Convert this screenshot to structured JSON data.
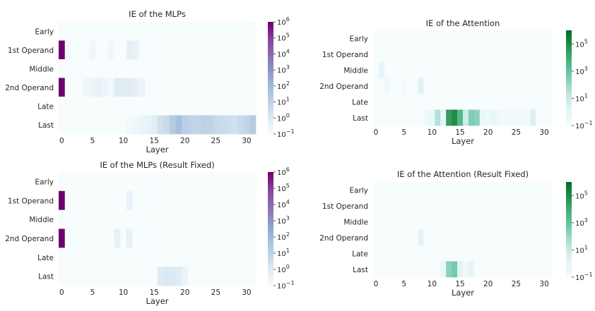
{
  "colors": {
    "mlp_scale": [
      "#f7fcfd",
      "#e0ecf4",
      "#bfd3e6",
      "#9ebcda",
      "#8c96c6",
      "#8c6bb1",
      "#88419d",
      "#6e016b"
    ],
    "attn_scale": [
      "#f7fcfd",
      "#e5f5f9",
      "#ccece6",
      "#99d8c9",
      "#66c2a4",
      "#41ae76",
      "#238b45",
      "#006d2c"
    ],
    "text": "#262626"
  },
  "chart_data": [
    {
      "type": "heatmap",
      "title": "IE of the MLPs",
      "xlabel": "Layer",
      "ylabel": "",
      "rows": [
        "Early",
        "1st Operand",
        "Middle",
        "2nd Operand",
        "Late",
        "Last"
      ],
      "x_ticks": [
        "0",
        "5",
        "10",
        "15",
        "20",
        "25",
        "30"
      ],
      "x": [
        0,
        1,
        2,
        3,
        4,
        5,
        6,
        7,
        8,
        9,
        10,
        11,
        12,
        13,
        14,
        15,
        16,
        17,
        18,
        19,
        20,
        21,
        22,
        23,
        24,
        25,
        26,
        27,
        28,
        29,
        30,
        31
      ],
      "color_scale": "log",
      "cbar_range": [
        0.1,
        1000000
      ],
      "cbar_ticks": [
        "10^6",
        "10^5",
        "10^4",
        "10^3",
        "10^2",
        "10^1",
        "10^0",
        "10^-1"
      ],
      "values": [
        [
          0.1,
          0.1,
          0.1,
          0.1,
          0.1,
          0.1,
          0.1,
          0.1,
          0.1,
          0.1,
          0.1,
          0.1,
          0.1,
          0.1,
          0.1,
          0.1,
          0.1,
          0.1,
          0.1,
          0.1,
          0.1,
          0.1,
          0.1,
          0.1,
          0.1,
          0.1,
          0.1,
          0.1,
          0.1,
          0.1,
          0.1,
          0.1
        ],
        [
          1000000,
          0.15,
          0.1,
          0.1,
          0.1,
          0.25,
          0.1,
          0.1,
          0.2,
          0.1,
          0.1,
          0.6,
          0.4,
          0.1,
          0.1,
          0.1,
          0.1,
          0.1,
          0.1,
          0.1,
          0.1,
          0.1,
          0.1,
          0.1,
          0.1,
          0.1,
          0.1,
          0.1,
          0.1,
          0.1,
          0.1,
          0.1
        ],
        [
          0.1,
          0.1,
          0.1,
          0.1,
          0.1,
          0.1,
          0.1,
          0.1,
          0.1,
          0.1,
          0.1,
          0.1,
          0.1,
          0.1,
          0.1,
          0.1,
          0.1,
          0.1,
          0.1,
          0.1,
          0.1,
          0.1,
          0.1,
          0.1,
          0.1,
          0.1,
          0.1,
          0.1,
          0.1,
          0.1,
          0.1,
          0.1
        ],
        [
          1000000,
          0.1,
          0.1,
          0.1,
          0.2,
          0.3,
          0.5,
          0.3,
          0.15,
          1.0,
          0.8,
          0.9,
          0.6,
          0.3,
          0.1,
          0.1,
          0.1,
          0.1,
          0.1,
          0.1,
          0.1,
          0.1,
          0.1,
          0.1,
          0.1,
          0.1,
          0.1,
          0.1,
          0.1,
          0.1,
          0.1,
          0.1
        ],
        [
          0.1,
          0.1,
          0.1,
          0.1,
          0.1,
          0.1,
          0.1,
          0.1,
          0.1,
          0.1,
          0.1,
          0.1,
          0.1,
          0.1,
          0.1,
          0.1,
          0.1,
          0.1,
          0.1,
          0.1,
          0.1,
          0.1,
          0.1,
          0.1,
          0.1,
          0.1,
          0.1,
          0.1,
          0.1,
          0.1,
          0.1,
          0.1
        ],
        [
          0.1,
          0.1,
          0.1,
          0.1,
          0.1,
          0.1,
          0.1,
          0.1,
          0.1,
          0.1,
          0.1,
          0.15,
          0.2,
          0.3,
          0.4,
          0.8,
          3,
          5,
          20,
          60,
          15,
          10,
          8,
          12,
          10,
          6,
          5,
          4,
          3,
          5,
          8,
          20
        ]
      ]
    },
    {
      "type": "heatmap",
      "title": "IE of the Attention",
      "xlabel": "Layer",
      "ylabel": "",
      "rows": [
        "Early",
        "1st Operand",
        "Middle",
        "2nd Operand",
        "Late",
        "Last"
      ],
      "x_ticks": [
        "0",
        "5",
        "10",
        "15",
        "20",
        "25",
        "30"
      ],
      "x": [
        0,
        1,
        2,
        3,
        4,
        5,
        6,
        7,
        8,
        9,
        10,
        11,
        12,
        13,
        14,
        15,
        16,
        17,
        18,
        19,
        20,
        21,
        22,
        23,
        24,
        25,
        26,
        27,
        28,
        29,
        30,
        31
      ],
      "color_scale": "log",
      "cbar_range": [
        0.1,
        1000000
      ],
      "cbar_ticks": [
        "10^5",
        "10^3",
        "10^1",
        "10^-1"
      ],
      "values": [
        [
          0.1,
          0.1,
          0.1,
          0.1,
          0.1,
          0.1,
          0.1,
          0.1,
          0.1,
          0.1,
          0.1,
          0.1,
          0.1,
          0.1,
          0.1,
          0.1,
          0.1,
          0.1,
          0.1,
          0.1,
          0.1,
          0.1,
          0.1,
          0.1,
          0.1,
          0.1,
          0.1,
          0.1,
          0.1,
          0.1,
          0.1,
          0.1
        ],
        [
          0.1,
          0.1,
          0.1,
          0.1,
          0.1,
          0.1,
          0.1,
          0.1,
          0.1,
          0.1,
          0.1,
          0.1,
          0.1,
          0.1,
          0.1,
          0.1,
          0.1,
          0.1,
          0.1,
          0.1,
          0.1,
          0.1,
          0.1,
          0.1,
          0.1,
          0.1,
          0.1,
          0.1,
          0.1,
          0.1,
          0.1,
          0.1
        ],
        [
          0.1,
          1.0,
          0.1,
          0.1,
          0.1,
          0.1,
          0.1,
          0.1,
          0.1,
          0.1,
          0.1,
          0.1,
          0.1,
          0.1,
          0.1,
          0.1,
          0.1,
          0.1,
          0.1,
          0.1,
          0.1,
          0.1,
          0.1,
          0.1,
          0.1,
          0.1,
          0.1,
          0.1,
          0.1,
          0.1,
          0.1,
          0.1
        ],
        [
          0.1,
          0.1,
          0.3,
          0.1,
          0.1,
          0.2,
          0.1,
          0.1,
          2.0,
          0.1,
          0.1,
          0.1,
          0.1,
          0.1,
          0.1,
          0.1,
          0.1,
          0.1,
          0.1,
          0.1,
          0.1,
          0.1,
          0.1,
          0.1,
          0.1,
          0.1,
          0.1,
          0.1,
          0.1,
          0.1,
          0.1,
          0.1
        ],
        [
          0.1,
          0.1,
          0.1,
          0.1,
          0.1,
          0.1,
          0.1,
          0.1,
          0.1,
          0.1,
          0.1,
          0.1,
          0.1,
          0.1,
          0.1,
          0.1,
          0.1,
          0.1,
          0.1,
          0.1,
          0.1,
          0.1,
          0.1,
          0.1,
          0.1,
          0.1,
          0.1,
          0.1,
          0.1,
          0.1,
          0.1,
          0.1
        ],
        [
          0.1,
          0.1,
          0.1,
          0.1,
          0.1,
          0.1,
          0.1,
          0.1,
          0.1,
          0.3,
          0.5,
          30,
          0.8,
          30000,
          100000,
          3000,
          10,
          300,
          200,
          0.5,
          0.3,
          0.8,
          0.3,
          0.2,
          0.2,
          0.2,
          0.2,
          0.2,
          3,
          0.1,
          0.1,
          0.1
        ]
      ]
    },
    {
      "type": "heatmap",
      "title": "IE of the MLPs (Result Fixed)",
      "xlabel": "Layer",
      "ylabel": "",
      "rows": [
        "Early",
        "1st Operand",
        "Middle",
        "2nd Operand",
        "Late",
        "Last"
      ],
      "x_ticks": [
        "0",
        "5",
        "10",
        "15",
        "20",
        "25",
        "30"
      ],
      "x": [
        0,
        1,
        2,
        3,
        4,
        5,
        6,
        7,
        8,
        9,
        10,
        11,
        12,
        13,
        14,
        15,
        16,
        17,
        18,
        19,
        20,
        21,
        22,
        23,
        24,
        25,
        26,
        27,
        28,
        29,
        30,
        31
      ],
      "color_scale": "log",
      "cbar_range": [
        0.1,
        1000000
      ],
      "cbar_ticks": [
        "10^6",
        "10^5",
        "10^4",
        "10^3",
        "10^2",
        "10^1",
        "10^0",
        "10^-1"
      ],
      "values": [
        [
          0.1,
          0.1,
          0.1,
          0.1,
          0.1,
          0.1,
          0.1,
          0.1,
          0.1,
          0.1,
          0.1,
          0.1,
          0.1,
          0.1,
          0.1,
          0.1,
          0.1,
          0.1,
          0.1,
          0.1,
          0.1,
          0.1,
          0.1,
          0.1,
          0.1,
          0.1,
          0.1,
          0.1,
          0.1,
          0.1,
          0.1,
          0.1
        ],
        [
          1000000,
          0.1,
          0.1,
          0.1,
          0.1,
          0.1,
          0.1,
          0.1,
          0.1,
          0.1,
          0.1,
          0.4,
          0.1,
          0.1,
          0.1,
          0.1,
          0.1,
          0.1,
          0.1,
          0.1,
          0.1,
          0.1,
          0.1,
          0.1,
          0.1,
          0.1,
          0.1,
          0.1,
          0.1,
          0.1,
          0.1,
          0.1
        ],
        [
          0.1,
          0.1,
          0.1,
          0.1,
          0.1,
          0.1,
          0.1,
          0.1,
          0.1,
          0.1,
          0.1,
          0.1,
          0.1,
          0.1,
          0.1,
          0.1,
          0.1,
          0.1,
          0.1,
          0.1,
          0.1,
          0.1,
          0.1,
          0.1,
          0.1,
          0.1,
          0.1,
          0.1,
          0.1,
          0.1,
          0.1,
          0.1
        ],
        [
          1000000,
          0.1,
          0.1,
          0.1,
          0.1,
          0.1,
          0.1,
          0.1,
          0.1,
          0.5,
          0.1,
          0.5,
          0.1,
          0.1,
          0.1,
          0.1,
          0.1,
          0.1,
          0.1,
          0.1,
          0.1,
          0.1,
          0.1,
          0.1,
          0.1,
          0.1,
          0.1,
          0.1,
          0.1,
          0.1,
          0.1,
          0.1
        ],
        [
          0.1,
          0.1,
          0.1,
          0.1,
          0.1,
          0.1,
          0.1,
          0.1,
          0.1,
          0.1,
          0.1,
          0.1,
          0.1,
          0.1,
          0.1,
          0.1,
          0.1,
          0.1,
          0.1,
          0.1,
          0.1,
          0.1,
          0.1,
          0.1,
          0.1,
          0.1,
          0.1,
          0.1,
          0.1,
          0.1,
          0.1,
          0.1
        ],
        [
          0.1,
          0.1,
          0.1,
          0.1,
          0.1,
          0.1,
          0.1,
          0.1,
          0.1,
          0.1,
          0.1,
          0.1,
          0.1,
          0.1,
          0.1,
          0.1,
          1.0,
          1.5,
          1.2,
          1.0,
          0.3,
          0.1,
          0.1,
          0.1,
          0.1,
          0.1,
          0.1,
          0.1,
          0.1,
          0.1,
          0.1,
          0.1
        ]
      ]
    },
    {
      "type": "heatmap",
      "title": "IE of the Attention (Result Fixed)",
      "xlabel": "Layer",
      "ylabel": "",
      "rows": [
        "Early",
        "1st Operand",
        "Middle",
        "2nd Operand",
        "Late",
        "Last"
      ],
      "x_ticks": [
        "0",
        "5",
        "10",
        "15",
        "20",
        "25",
        "30"
      ],
      "x": [
        0,
        1,
        2,
        3,
        4,
        5,
        6,
        7,
        8,
        9,
        10,
        11,
        12,
        13,
        14,
        15,
        16,
        17,
        18,
        19,
        20,
        21,
        22,
        23,
        24,
        25,
        26,
        27,
        28,
        29,
        30,
        31
      ],
      "color_scale": "log",
      "cbar_range": [
        0.1,
        1000000
      ],
      "cbar_ticks": [
        "10^5",
        "10^3",
        "10^1",
        "10^-1"
      ],
      "values": [
        [
          0.1,
          0.1,
          0.1,
          0.1,
          0.1,
          0.1,
          0.1,
          0.1,
          0.1,
          0.1,
          0.1,
          0.1,
          0.1,
          0.1,
          0.1,
          0.1,
          0.1,
          0.1,
          0.1,
          0.1,
          0.1,
          0.1,
          0.1,
          0.1,
          0.1,
          0.1,
          0.1,
          0.1,
          0.1,
          0.1,
          0.1,
          0.1
        ],
        [
          0.1,
          0.1,
          0.1,
          0.1,
          0.1,
          0.1,
          0.1,
          0.1,
          0.1,
          0.1,
          0.1,
          0.1,
          0.1,
          0.1,
          0.1,
          0.1,
          0.1,
          0.1,
          0.1,
          0.1,
          0.1,
          0.1,
          0.1,
          0.1,
          0.1,
          0.1,
          0.1,
          0.1,
          0.1,
          0.1,
          0.1,
          0.1
        ],
        [
          0.1,
          0.1,
          0.1,
          0.1,
          0.1,
          0.1,
          0.1,
          0.1,
          0.1,
          0.1,
          0.1,
          0.1,
          0.1,
          0.1,
          0.1,
          0.1,
          0.1,
          0.1,
          0.1,
          0.1,
          0.1,
          0.1,
          0.1,
          0.1,
          0.1,
          0.1,
          0.1,
          0.1,
          0.1,
          0.1,
          0.1,
          0.1
        ],
        [
          0.1,
          0.1,
          0.1,
          0.1,
          0.1,
          0.1,
          0.1,
          0.1,
          1.5,
          0.1,
          0.1,
          0.1,
          0.1,
          0.1,
          0.1,
          0.1,
          0.1,
          0.1,
          0.1,
          0.1,
          0.1,
          0.1,
          0.1,
          0.1,
          0.1,
          0.1,
          0.1,
          0.1,
          0.1,
          0.1,
          0.1,
          0.1
        ],
        [
          0.1,
          0.1,
          0.1,
          0.1,
          0.1,
          0.1,
          0.1,
          0.1,
          0.1,
          0.1,
          0.1,
          0.1,
          0.1,
          0.1,
          0.1,
          0.1,
          0.1,
          0.1,
          0.1,
          0.1,
          0.1,
          0.1,
          0.1,
          0.1,
          0.1,
          0.1,
          0.1,
          0.1,
          0.1,
          0.1,
          0.1,
          0.1
        ],
        [
          0.1,
          0.1,
          0.1,
          0.1,
          0.1,
          0.1,
          0.1,
          0.1,
          0.1,
          0.1,
          0.1,
          0.1,
          0.5,
          200,
          500,
          1.5,
          0.3,
          1.0,
          0.1,
          0.1,
          0.1,
          0.1,
          0.1,
          0.1,
          0.1,
          0.1,
          0.1,
          0.1,
          0.1,
          0.1,
          0.1,
          0.1
        ]
      ]
    }
  ]
}
